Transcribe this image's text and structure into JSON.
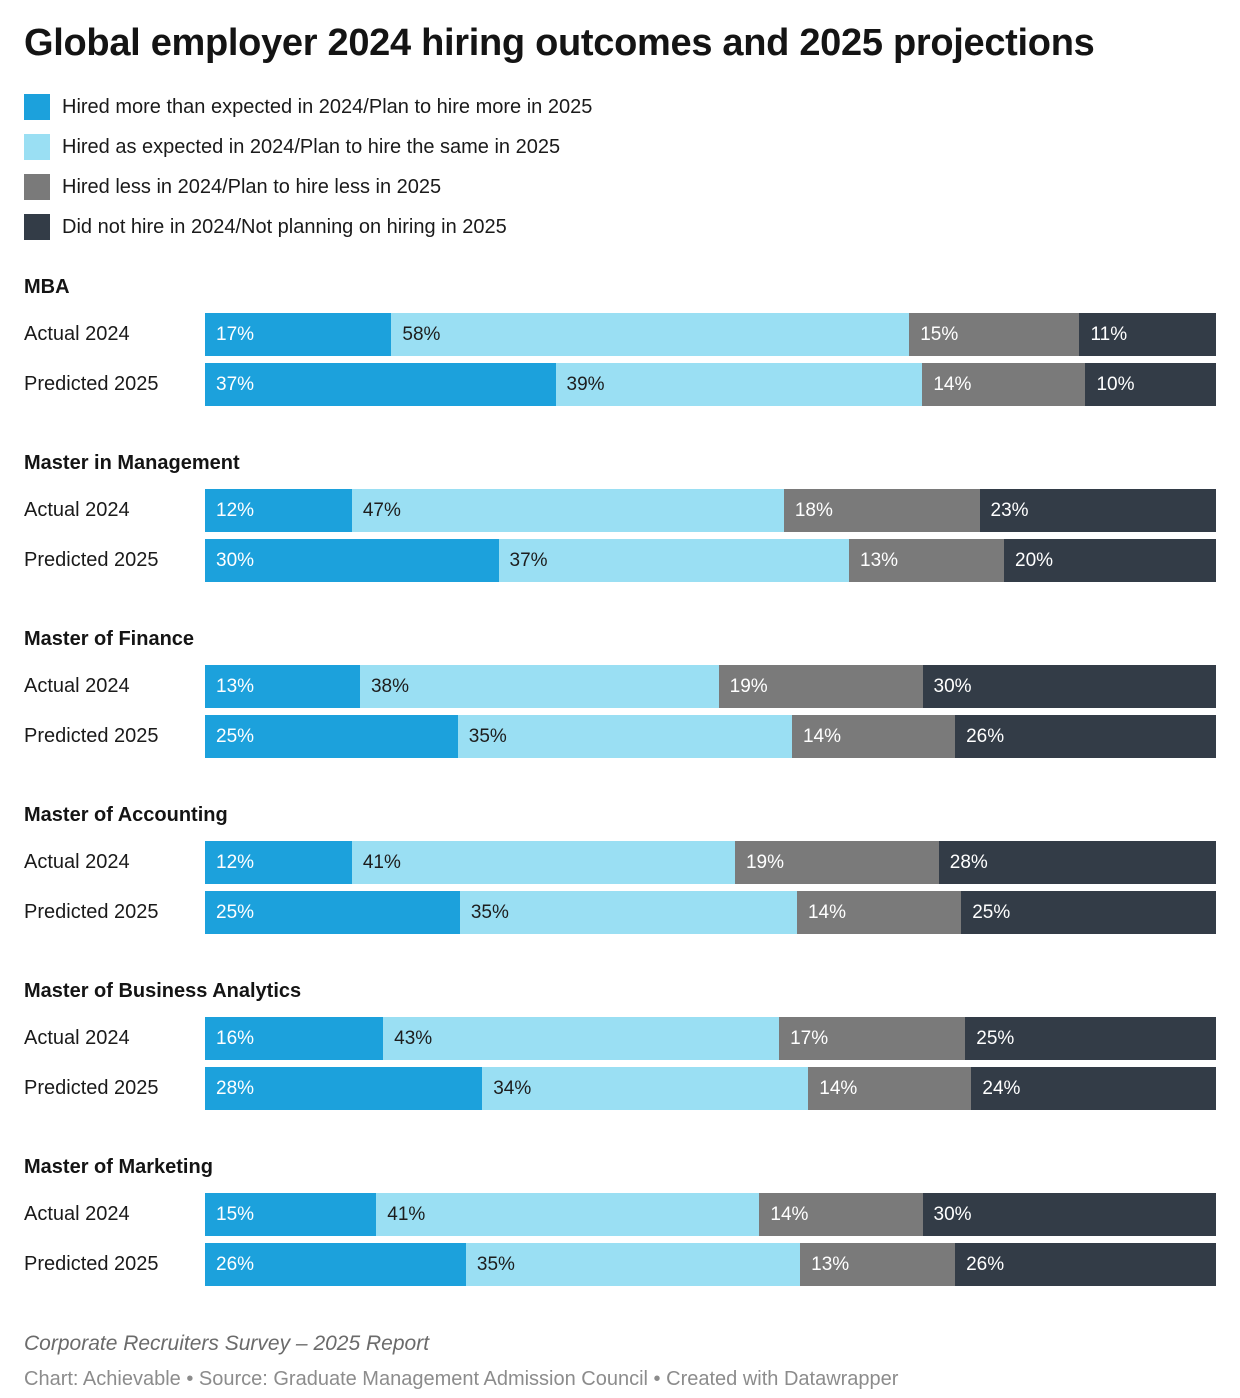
{
  "title": "Global employer 2024 hiring outcomes and 2025 projections",
  "chart_data": {
    "type": "bar",
    "variant": "horizontal-stacked",
    "unit": "%",
    "legend_position": "top-left",
    "series_labels": [
      "Hired more than expected in 2024/Plan to hire more in 2025",
      "Hired as expected in 2024/Plan to hire the same in 2025",
      "Hired less in 2024/Plan to hire less in 2025",
      "Did not hire in 2024/Not planning on hiring in 2025"
    ],
    "segment_colors": [
      "#1ca1dc",
      "#9adff3",
      "#7a7a7a",
      "#333c47"
    ],
    "segment_label_colors": [
      "#ffffff",
      "#1d1d1d",
      "#ffffff",
      "#ffffff"
    ],
    "groups": [
      {
        "name": "MBA",
        "rows": [
          {
            "label": "Actual 2024",
            "values": [
              17,
              58,
              15,
              11
            ]
          },
          {
            "label": "Predicted 2025",
            "values": [
              37,
              39,
              14,
              10
            ]
          }
        ]
      },
      {
        "name": "Master in Management",
        "rows": [
          {
            "label": "Actual 2024",
            "values": [
              12,
              47,
              18,
              23
            ]
          },
          {
            "label": "Predicted 2025",
            "values": [
              30,
              37,
              13,
              20
            ]
          }
        ]
      },
      {
        "name": "Master of Finance",
        "rows": [
          {
            "label": "Actual 2024",
            "values": [
              13,
              38,
              19,
              30
            ]
          },
          {
            "label": "Predicted 2025",
            "values": [
              25,
              35,
              14,
              26
            ]
          }
        ]
      },
      {
        "name": "Master of Accounting",
        "rows": [
          {
            "label": "Actual 2024",
            "values": [
              12,
              41,
              19,
              28
            ]
          },
          {
            "label": "Predicted 2025",
            "values": [
              25,
              35,
              14,
              25
            ]
          }
        ]
      },
      {
        "name": "Master of Business Analytics",
        "rows": [
          {
            "label": "Actual 2024",
            "values": [
              16,
              43,
              17,
              25
            ]
          },
          {
            "label": "Predicted 2025",
            "values": [
              28,
              34,
              14,
              24
            ]
          }
        ]
      },
      {
        "name": "Master of Marketing",
        "rows": [
          {
            "label": "Actual 2024",
            "values": [
              15,
              41,
              14,
              30
            ]
          },
          {
            "label": "Predicted 2025",
            "values": [
              26,
              35,
              13,
              26
            ]
          }
        ]
      }
    ]
  },
  "footer": {
    "note": "Corporate Recruiters Survey – 2025 Report",
    "byline": "Chart: Achievable • Source: Graduate Management Admission Council • Created with Datawrapper"
  }
}
